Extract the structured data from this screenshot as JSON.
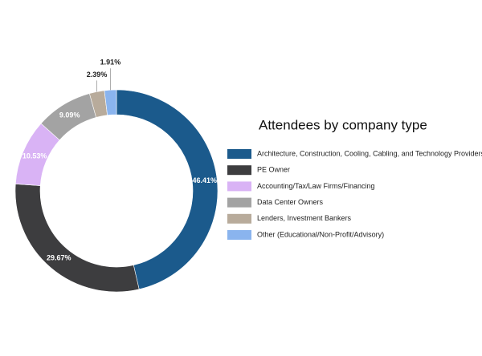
{
  "chart_data": {
    "type": "donut",
    "title": "Attendees by company type",
    "categories": [
      "Architecture, Construction, Cooling, Cabling, and Technology Providers",
      "PE Owner",
      "Accounting/Tax/Law Firms/Financing",
      "Data Center Owners",
      "Lenders, Investment Bankers",
      "Other (Educational/Non-Profit/Advisory)"
    ],
    "values": [
      46.41,
      29.67,
      10.53,
      9.09,
      2.39,
      1.91
    ],
    "value_labels": [
      "46.41%",
      "29.67%",
      "10.53%",
      "9.09%",
      "2.39%",
      "1.91%"
    ],
    "colors": [
      "#1b5a8c",
      "#3d3d3f",
      "#d9b3f5",
      "#a3a3a3",
      "#b8ab9b",
      "#8ab4ee"
    ],
    "legend": "right"
  }
}
